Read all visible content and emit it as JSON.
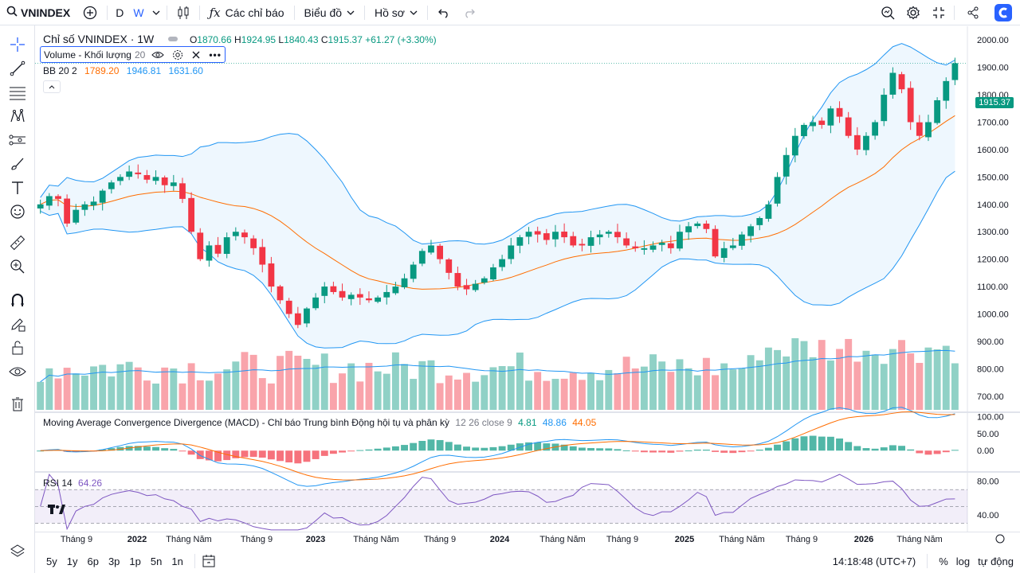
{
  "toolbar": {
    "symbol": "VNINDEX",
    "interval_d": "D",
    "interval_w": "W",
    "indicators_label": "Các chỉ báo",
    "chart_label": "Biểu đồ",
    "profile_label": "Hồ sơ"
  },
  "legend": {
    "title": "Chỉ số VNINDEX · 1W",
    "o_label": "O",
    "o": "1870.66",
    "h_label": "H",
    "h": "1924.95",
    "l_label": "L",
    "l": "1840.43",
    "c_label": "C",
    "c": "1915.37",
    "change": "+61.27 (+3.30%)",
    "volume_label": "Volume - Khối lượng",
    "volume_len": "20",
    "bb_label": "BB 20 2",
    "bb_basis": "1789.20",
    "bb_upper": "1946.81",
    "bb_lower": "1631.60",
    "macd_label": "Moving Average Convergence Divergence (MACD) - Chỉ báo Trung bình Động hội tụ và phân kỳ",
    "macd_params": "12 26 close 9",
    "macd_hist": "4.81",
    "macd_line": "48.86",
    "macd_signal": "44.05",
    "rsi_label": "RSI 14",
    "rsi_value": "64.26"
  },
  "price_axis": [
    "2000.00",
    "1900.00",
    "1800.00",
    "1700.00",
    "1600.00",
    "1500.00",
    "1400.00",
    "1300.00",
    "1200.00",
    "1100.00",
    "1000.00",
    "900.00",
    "800.00",
    "700.00"
  ],
  "macd_axis": [
    "100.00",
    "50.00",
    "0.00"
  ],
  "rsi_axis": [
    "80.00",
    "40.00"
  ],
  "last_price": "1915.37",
  "time_axis": [
    {
      "label": "Tháng 9",
      "bold": false
    },
    {
      "label": "2022",
      "bold": true
    },
    {
      "label": "Tháng Năm",
      "bold": false
    },
    {
      "label": "Tháng 9",
      "bold": false
    },
    {
      "label": "2023",
      "bold": true
    },
    {
      "label": "Tháng Năm",
      "bold": false
    },
    {
      "label": "Tháng 9",
      "bold": false
    },
    {
      "label": "2024",
      "bold": true
    },
    {
      "label": "Tháng Năm",
      "bold": false
    },
    {
      "label": "Tháng 9",
      "bold": false
    },
    {
      "label": "2025",
      "bold": true
    },
    {
      "label": "Tháng Năm",
      "bold": false
    },
    {
      "label": "Tháng 9",
      "bold": false
    },
    {
      "label": "2026",
      "bold": true
    },
    {
      "label": "Tháng Năm",
      "bold": false
    }
  ],
  "timeframes": [
    "5y",
    "1y",
    "6p",
    "3p",
    "1p",
    "5n",
    "1n"
  ],
  "clock": "14:18:48 (UTC+7)",
  "pct_label": "%",
  "log_label": "log",
  "auto_label": "tự động",
  "colors": {
    "up": "#089981",
    "down": "#f23645",
    "accent": "#2962ff",
    "bb": "#2196f3",
    "basis": "#ff6d00",
    "rsi": "#7e57c2"
  },
  "chart_data": {
    "type": "candlestick",
    "title": "Chỉ số VNINDEX · 1W",
    "close_path": [
      1400,
      1430,
      1420,
      1330,
      1380,
      1400,
      1410,
      1450,
      1480,
      1500,
      1520,
      1510,
      1490,
      1500,
      1470,
      1480,
      1420,
      1300,
      1200,
      1250,
      1220,
      1280,
      1300,
      1280,
      1240,
      1180,
      1100,
      1050,
      1000,
      960,
      1020,
      1060,
      1100,
      1080,
      1060,
      1070,
      1060,
      1050,
      1060,
      1080,
      1100,
      1130,
      1180,
      1230,
      1250,
      1200,
      1150,
      1100,
      1090,
      1110,
      1130,
      1170,
      1200,
      1250,
      1280,
      1300,
      1290,
      1270,
      1300,
      1280,
      1250,
      1250,
      1280,
      1290,
      1300,
      1280,
      1250,
      1240,
      1240,
      1250,
      1260,
      1240,
      1300,
      1320,
      1330,
      1310,
      1210,
      1240,
      1250,
      1290,
      1320,
      1350,
      1400,
      1500,
      1580,
      1650,
      1690,
      1700,
      1690,
      1750,
      1720,
      1650,
      1600,
      1650,
      1700,
      1800,
      1880,
      1820,
      1700,
      1650,
      1700,
      1780,
      1850,
      1915
    ],
    "price_ylim": [
      650,
      2050
    ],
    "volume_ylim": [
      0,
      1000
    ],
    "macd_ylim": [
      -60,
      110
    ],
    "rsi_ylim": [
      20,
      90
    ]
  }
}
